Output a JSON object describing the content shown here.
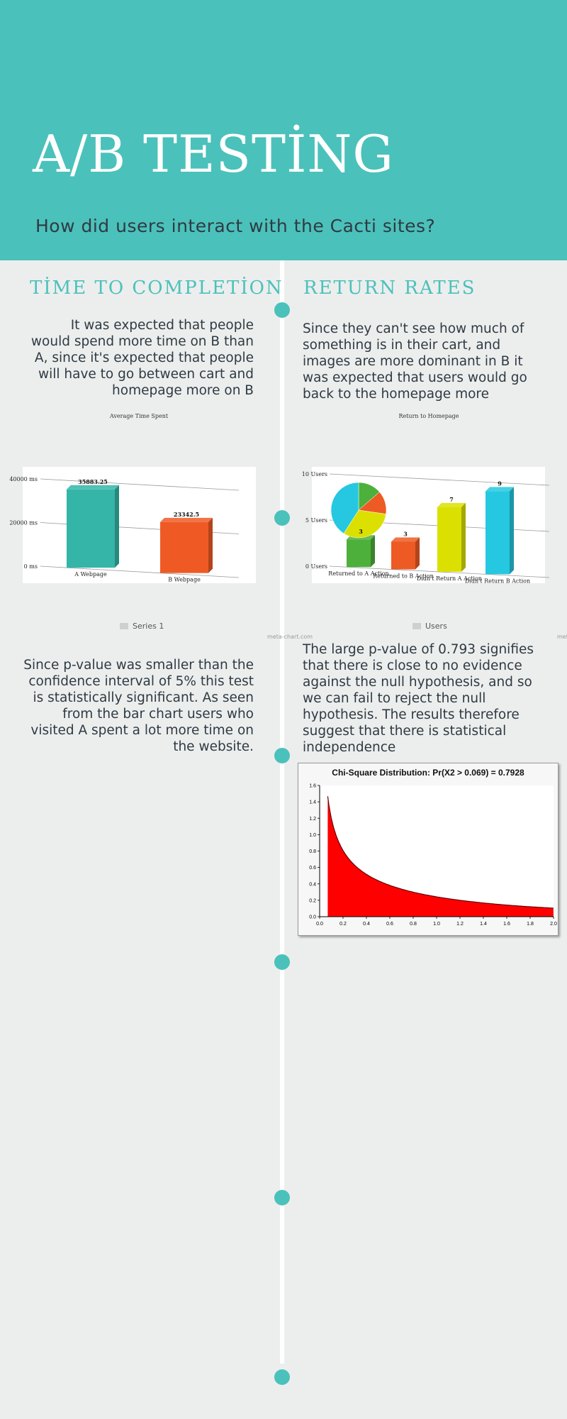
{
  "header": {
    "title": "A/B TESTİNG",
    "subtitle": "How did users interact with the Cacti sites?"
  },
  "sections": {
    "left_title": "TİME TO COMPLETİON",
    "right_title": "RETURN RATES",
    "left_intro": "It was expected that people would spend more time on B than A, since it's expected that people will have to go between cart and homepage more on B",
    "right_intro": "Since they can't see how much of something is in their cart, and images are more dominant in B it was expected that users would go back to the homepage more",
    "left_conclusion": "Since p-value was smaller than the confidence interval of 5% this test is statistically significant. As seen from the bar chart users who visited A spent a lot more time on the website.",
    "right_conclusion": "The large p-value of 0.793 signifies that there is close to no evidence against the null hypothesis, and so we can fail to reject the null hypothesis. The results therefore suggest that there is statistical independence"
  },
  "credits": {
    "meta_chart": "meta-chart.com",
    "meta_partial": "met"
  },
  "colors": {
    "teal": "#4bc1bb",
    "background": "#eceeed",
    "dark_text": "#2f3a42"
  },
  "chart_data": [
    {
      "type": "bar",
      "title": "Average Time Spent",
      "categories": [
        "A Webpage",
        "B Webpage"
      ],
      "series": [
        {
          "name": "Series 1",
          "values": [
            35883.25,
            23342.5
          ]
        }
      ],
      "value_labels": [
        "35883.25",
        "23342.5"
      ],
      "ytick_labels": [
        "0 ms",
        "20000 ms",
        "40000 ms"
      ],
      "ylim": [
        0,
        40000
      ],
      "colors": [
        "#34b5a8",
        "#ef5a24"
      ],
      "legend": "bottom"
    },
    {
      "type": "bar",
      "title": "Return to Homepage",
      "categories": [
        "Returned to A Action",
        "Returned to B Action",
        "Didn't Return A Action",
        "Didn't Return B Action"
      ],
      "series": [
        {
          "name": "Users",
          "values": [
            3,
            3,
            7,
            9
          ]
        }
      ],
      "value_labels": [
        "3",
        "3",
        "7",
        "9"
      ],
      "ytick_labels": [
        "0 Users",
        "5 Users",
        "10 Users"
      ],
      "ylim": [
        0,
        10
      ],
      "colors": [
        "#4db03a",
        "#ee5a24",
        "#dbe000",
        "#25c8e0"
      ],
      "pie_inset": [
        3,
        3,
        7,
        9
      ],
      "legend": "bottom"
    },
    {
      "type": "area",
      "title": "Chi-Square Distribution: Pr(X2 > 0.069) = 0.7928",
      "xlim": [
        0,
        2.0
      ],
      "ylim": [
        0,
        1.6
      ],
      "x_ticks": [
        "0.0",
        "0.2",
        "0.4",
        "0.6",
        "0.8",
        "1.0",
        "1.2",
        "1.4",
        "1.6",
        "1.8",
        "2.0"
      ],
      "y_ticks": [
        "0.0",
        "0.2",
        "0.4",
        "0.6",
        "0.8",
        "1.0",
        "1.2",
        "1.4",
        "1.6"
      ],
      "shade_from": 0.069,
      "color": "#ff0000"
    }
  ]
}
